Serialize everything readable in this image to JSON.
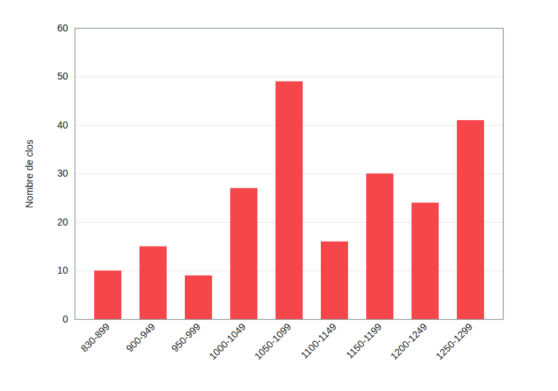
{
  "chart_data": {
    "type": "bar",
    "y_label": "Nombre de clos",
    "categories": [
      "830-899",
      "900-949",
      "950-999",
      "1000-1049",
      "1050-1099",
      "1100-1149",
      "1150-1199",
      "1200-1249",
      "1250-1299"
    ],
    "values": [
      10,
      15,
      9,
      27,
      49,
      16,
      30,
      24,
      41
    ],
    "color": "#f5474b",
    "ylim": [
      0,
      60
    ],
    "yticks": [
      0,
      10,
      20,
      30,
      40,
      50,
      60
    ],
    "grid": true
  }
}
